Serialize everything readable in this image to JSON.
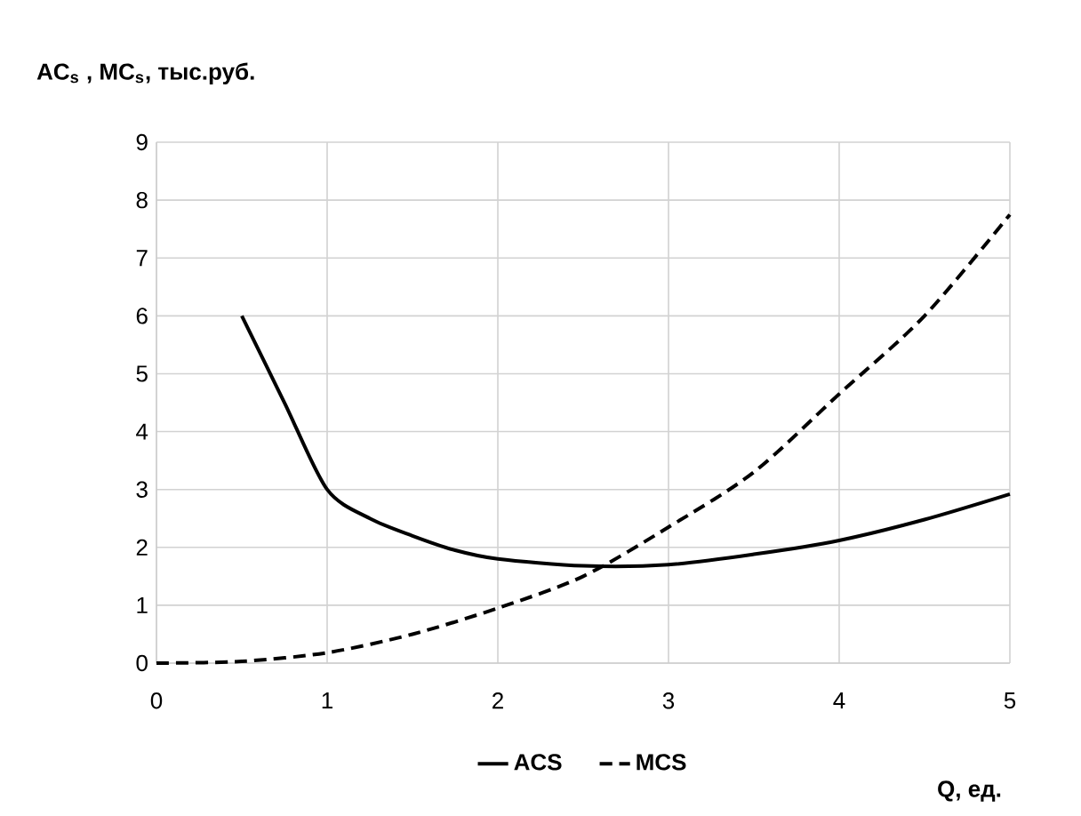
{
  "chart_data": {
    "type": "line",
    "ylabel": "AC$_{s}$ , MC$_{s}$, тыс.руб.",
    "xlabel": "Q, ед.",
    "xlim": [
      0,
      5
    ],
    "xticks": [
      0,
      1,
      2,
      3,
      4,
      5
    ],
    "ylim": [
      0,
      9
    ],
    "yticks": [
      0,
      1,
      2,
      3,
      4,
      5,
      6,
      7,
      8,
      9
    ],
    "grid": true,
    "legend": "bottom",
    "marker": "none",
    "series": [
      {
        "name": "ACS",
        "color": "#000000",
        "line_style": "solid",
        "x": [
          0.5,
          0.75,
          1,
          1.25,
          1.5,
          1.75,
          2,
          2.5,
          3,
          3.5,
          4,
          4.5,
          5
        ],
        "values": [
          6,
          4.5,
          3.0,
          2.5,
          2.2,
          1.95,
          1.8,
          1.68,
          1.7,
          1.88,
          2.12,
          2.48,
          2.92
        ]
      },
      {
        "name": "MCS",
        "color": "#000000",
        "line_style": "dashed",
        "x": [
          0,
          0.5,
          1,
          1.5,
          2,
          2.5,
          3,
          3.5,
          4,
          4.5,
          5
        ],
        "values": [
          0,
          0.03,
          0.18,
          0.5,
          0.95,
          1.5,
          2.35,
          3.3,
          4.65,
          6.0,
          7.75
        ]
      }
    ]
  }
}
